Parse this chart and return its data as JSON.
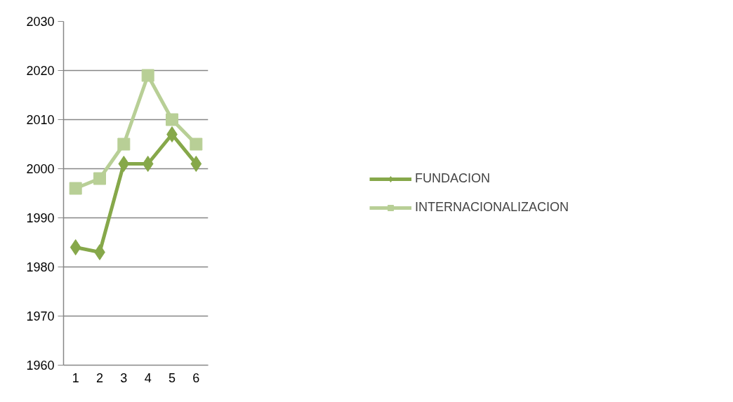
{
  "chart_data": {
    "type": "line",
    "categories": [
      "1",
      "2",
      "3",
      "4",
      "5",
      "6"
    ],
    "series": [
      {
        "name": "FUNDACION",
        "color": "#86a84a",
        "marker": "diamond",
        "values": [
          1984,
          1983,
          2001,
          2001,
          2007,
          2001
        ]
      },
      {
        "name": "INTERNACIONALIZACION",
        "color": "#b8cf96",
        "marker": "square",
        "values": [
          1996,
          1998,
          2005,
          2019,
          2010,
          2005
        ]
      }
    ],
    "ylim": [
      1960,
      2030
    ],
    "yticks": [
      1960,
      1970,
      1980,
      1990,
      2000,
      2010,
      2020,
      2030
    ],
    "grid": "y",
    "legend": "right",
    "line_style": "solid"
  }
}
